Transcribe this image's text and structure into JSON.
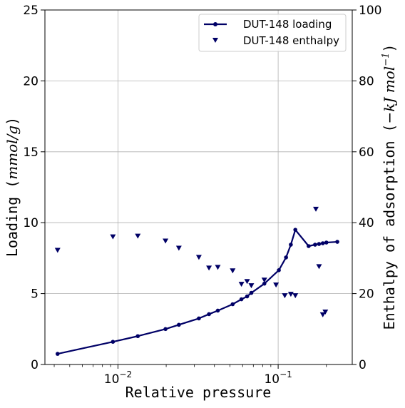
{
  "chart_data": {
    "type": "line",
    "xlabel": "Relative pressure",
    "ylabel": "Loading ($mmol/g$)",
    "ylabel_parts": [
      "Loading (",
      "mmol/g",
      ")"
    ],
    "y2label": "Enthalpy of adsorption ($-kJ\\,mol^{-1}$)",
    "y2label_parts": [
      "Enthalpy of adsorption (",
      "−kJ mol",
      "−1",
      ")"
    ],
    "x_scale": "log",
    "xlim": [
      0.0035,
      0.29
    ],
    "ylim": [
      0,
      25
    ],
    "y2lim": [
      0,
      100
    ],
    "x_ticks": [
      {
        "value": 0.01,
        "base": "10",
        "exp": "−2"
      },
      {
        "value": 0.1,
        "base": "10",
        "exp": "−1"
      }
    ],
    "y_ticks": [
      {
        "value": 0,
        "label": "0"
      },
      {
        "value": 5,
        "label": "5"
      },
      {
        "value": 10,
        "label": "10"
      },
      {
        "value": 15,
        "label": "15"
      },
      {
        "value": 20,
        "label": "20"
      },
      {
        "value": 25,
        "label": "25"
      }
    ],
    "y2_ticks": [
      {
        "value": 0,
        "label": "0"
      },
      {
        "value": 20,
        "label": "20"
      },
      {
        "value": 40,
        "label": "40"
      },
      {
        "value": 60,
        "label": "60"
      },
      {
        "value": 80,
        "label": "80"
      },
      {
        "value": 100,
        "label": "100"
      }
    ],
    "grid": true,
    "legend_position": "top-right",
    "series": [
      {
        "name": "DUT-148 loading",
        "axis": "left",
        "style": "line+marker",
        "color": "#000066",
        "x": [
          0.0042,
          0.0093,
          0.0133,
          0.0198,
          0.024,
          0.032,
          0.037,
          0.042,
          0.052,
          0.059,
          0.064,
          0.068,
          0.082,
          0.101,
          0.112,
          0.12,
          0.128,
          0.155,
          0.17,
          0.18,
          0.19,
          0.2,
          0.234
        ],
        "y": [
          0.75,
          1.6,
          2.0,
          2.5,
          2.8,
          3.25,
          3.55,
          3.8,
          4.25,
          4.6,
          4.8,
          5.05,
          5.7,
          6.65,
          7.55,
          8.45,
          9.5,
          8.35,
          8.45,
          8.5,
          8.55,
          8.6,
          8.65
        ]
      },
      {
        "name": "DUT-148 enthalpy",
        "axis": "right",
        "style": "marker",
        "marker": "triangle-down",
        "color": "#000066",
        "x": [
          0.0042,
          0.0093,
          0.0133,
          0.0198,
          0.024,
          0.032,
          0.037,
          0.042,
          0.052,
          0.059,
          0.064,
          0.068,
          0.082,
          0.097,
          0.11,
          0.12,
          0.128,
          0.172,
          0.18,
          0.19,
          0.197
        ],
        "y": [
          32.2,
          36.0,
          36.2,
          34.8,
          32.8,
          30.2,
          27.2,
          27.4,
          26.4,
          22.6,
          23.4,
          22.2,
          23.8,
          22.4,
          19.4,
          19.8,
          19.4,
          43.8,
          27.6,
          14.0,
          14.8
        ]
      }
    ]
  }
}
